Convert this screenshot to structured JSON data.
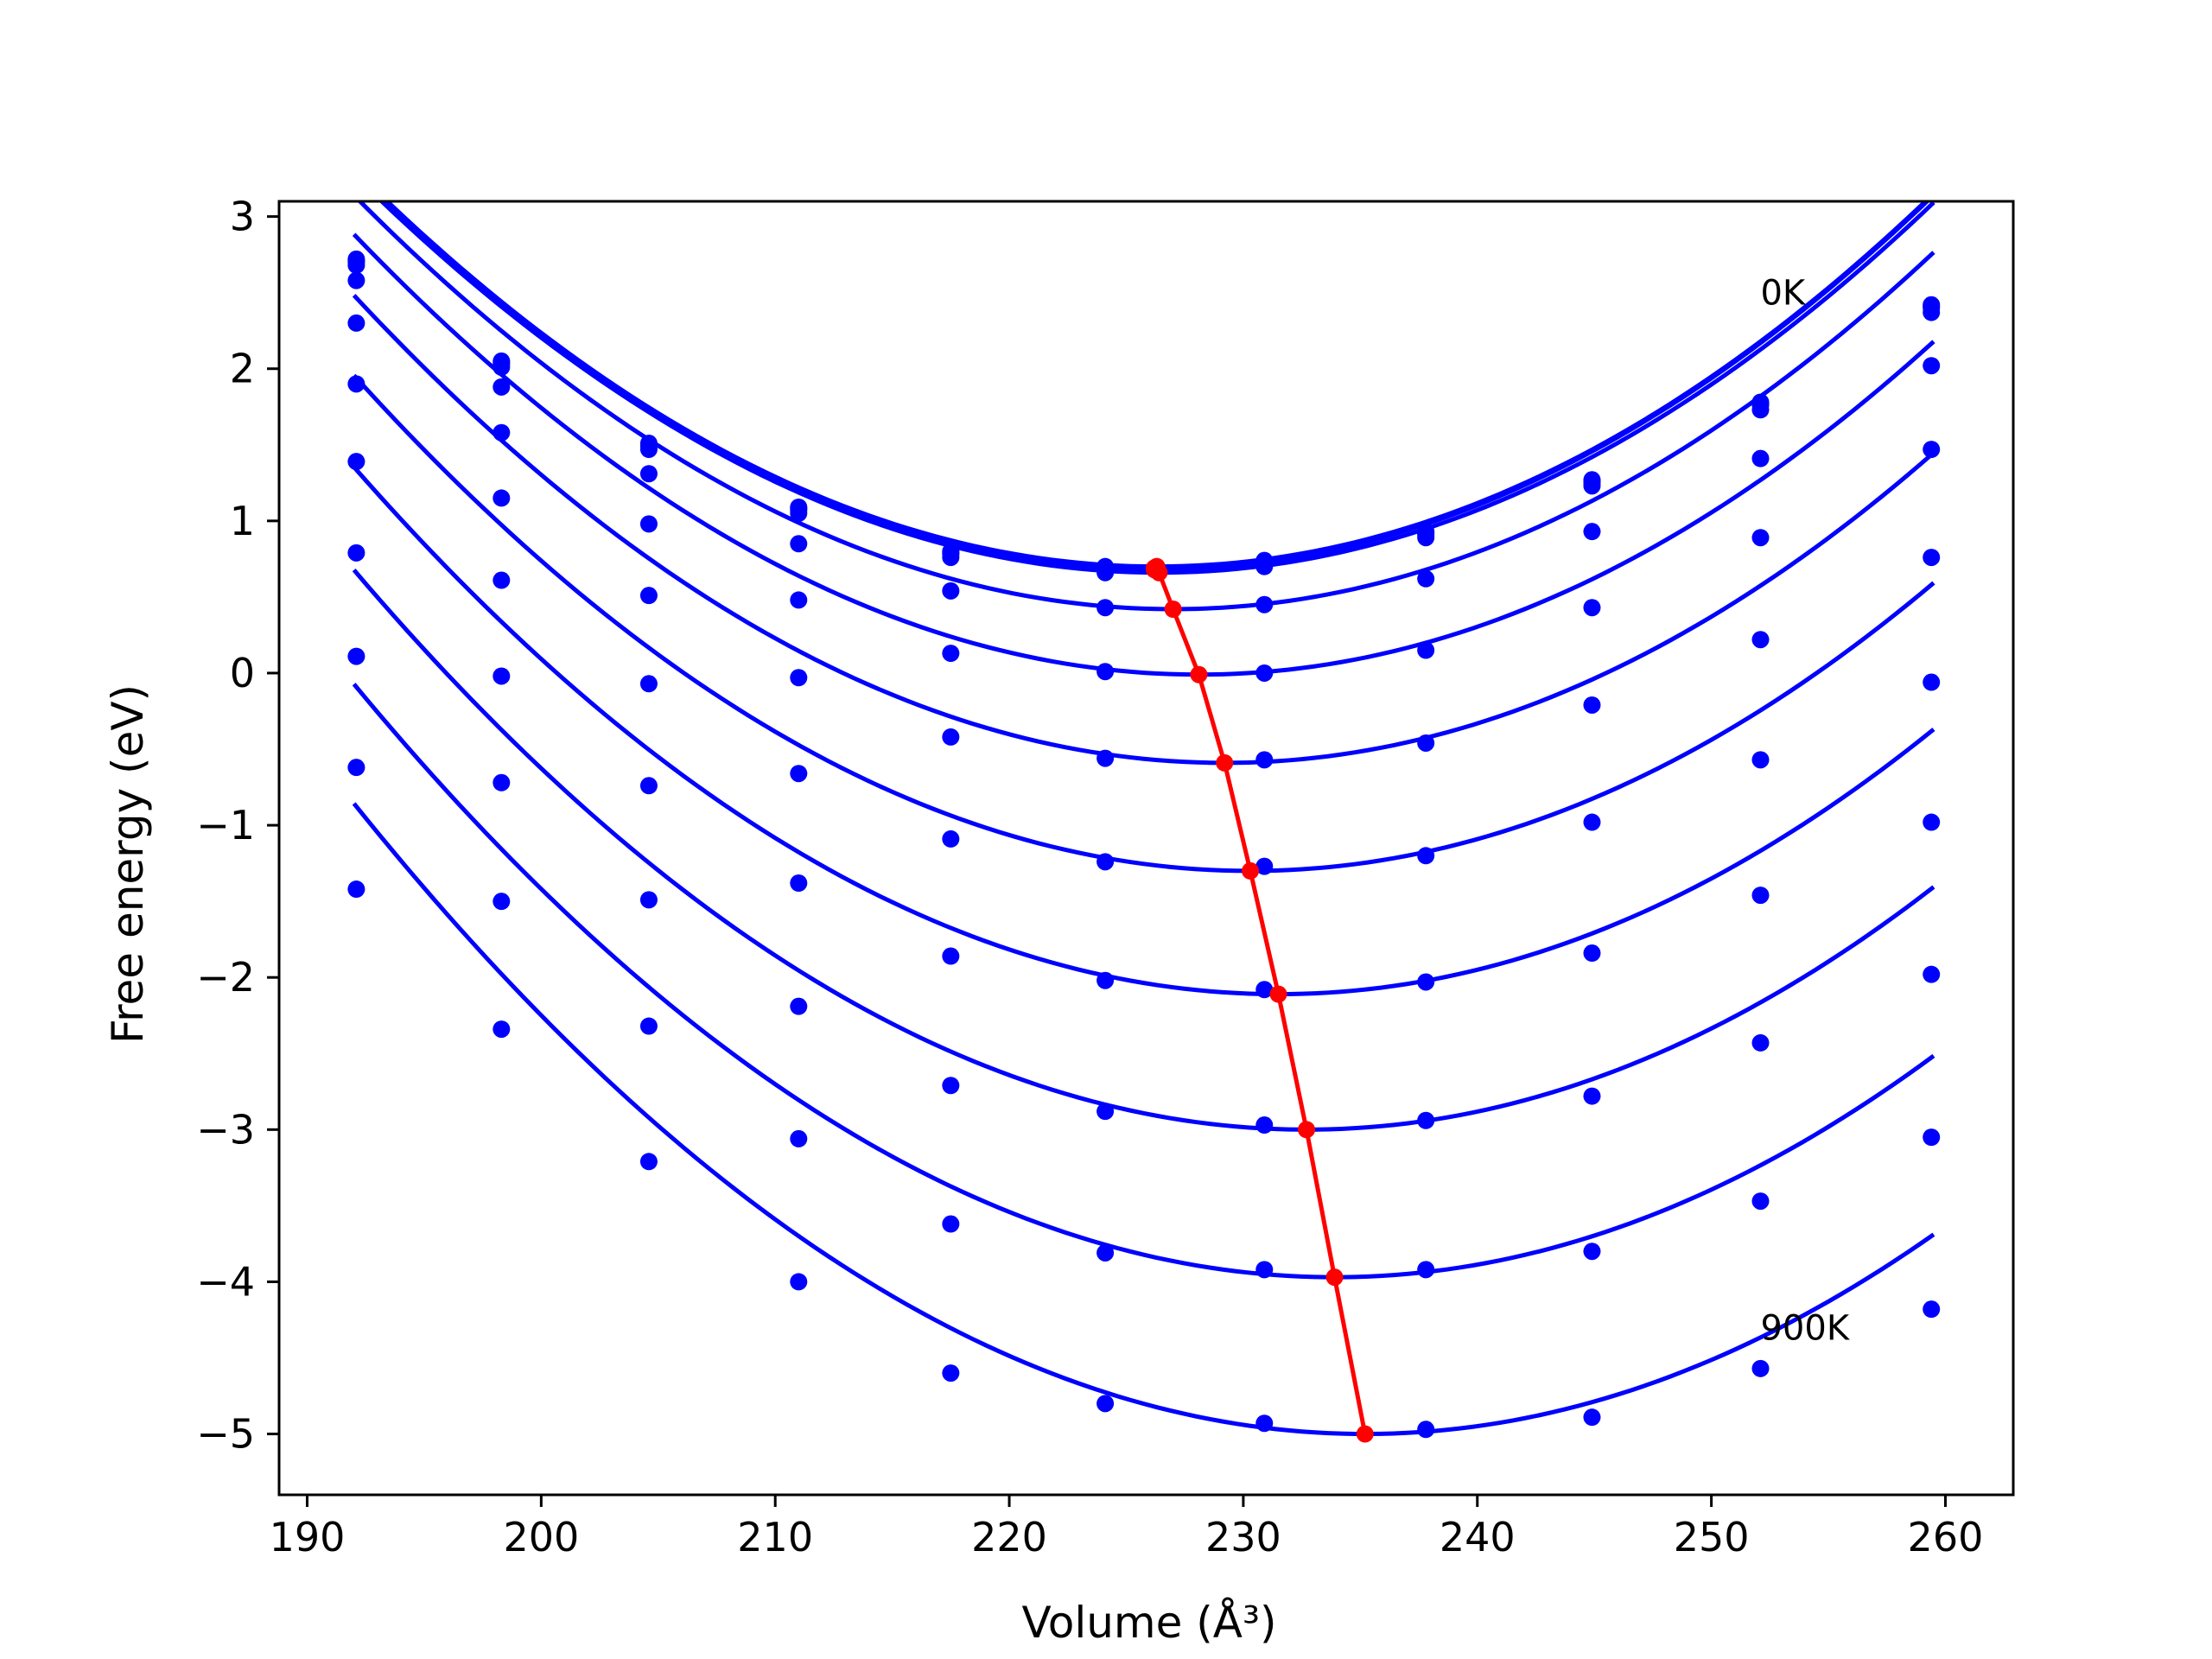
{
  "chart_data": {
    "type": "line",
    "xlabel": "Volume (Å³)",
    "ylabel": "Free energy (eV)",
    "xlim": [
      188.8,
      262.9
    ],
    "ylim": [
      -5.4,
      3.1
    ],
    "xticks": [
      190,
      200,
      210,
      220,
      230,
      240,
      250,
      260
    ],
    "yticks": [
      3,
      2,
      1,
      0,
      -1,
      -2,
      -3,
      -4,
      -5
    ],
    "xtick_labels": [
      "190",
      "200",
      "210",
      "220",
      "230",
      "240",
      "250",
      "260"
    ],
    "ytick_labels": [
      "3",
      "2",
      "1",
      "0",
      "−1",
      "−2",
      "−3",
      "−4",
      "−5"
    ],
    "grid": false,
    "annotations": [
      {
        "text": "0K",
        "x": 252.1,
        "y": 2.5
      },
      {
        "text": "900K",
        "x": 252.1,
        "y": -4.3
      }
    ],
    "fit_range": [
      192.0,
      259.5
    ],
    "volumes": [
      192.1,
      198.3,
      204.6,
      211.0,
      217.5,
      224.1,
      230.9,
      237.8,
      244.9,
      252.1,
      259.4
    ],
    "data_color": "#0000ff",
    "minimum_color": "#ff0000",
    "series": [
      {
        "vmin": 226.3,
        "fmin": 0.7,
        "k": 0.00222,
        "points": [
          2.72,
          2.05,
          1.51,
          1.09,
          0.8,
          0.7,
          0.74,
          0.93,
          1.27,
          1.78,
          2.42
        ]
      },
      {
        "vmin": 226.2,
        "fmin": 0.69,
        "k": 0.00222,
        "points": [
          2.71,
          2.04,
          1.5,
          1.08,
          0.79,
          0.69,
          0.73,
          0.92,
          1.26,
          1.77,
          2.41
        ]
      },
      {
        "vmin": 226.2,
        "fmin": 0.68,
        "k": 0.00222,
        "points": [
          2.7,
          2.03,
          1.49,
          1.07,
          0.78,
          0.68,
          0.72,
          0.91,
          1.25,
          1.76,
          2.4
        ]
      },
      {
        "vmin": 226.4,
        "fmin": 0.66,
        "k": 0.00222,
        "points": [
          2.68,
          2.01,
          1.47,
          1.05,
          0.76,
          0.66,
          0.7,
          0.89,
          1.23,
          1.73,
          2.37
        ]
      },
      {
        "vmin": 227.0,
        "fmin": 0.42,
        "k": 0.00222,
        "points": [
          2.58,
          1.88,
          1.31,
          0.85,
          0.54,
          0.43,
          0.45,
          0.62,
          0.93,
          1.41,
          2.02
        ]
      },
      {
        "vmin": 228.1,
        "fmin": -0.01,
        "k": 0.00222,
        "points": [
          2.3,
          1.58,
          0.98,
          0.48,
          0.13,
          0.01,
          0.0,
          0.15,
          0.43,
          0.89,
          1.47
        ]
      },
      {
        "vmin": 229.2,
        "fmin": -0.59,
        "k": 0.00222,
        "points": [
          1.9,
          1.15,
          0.51,
          -0.03,
          -0.42,
          -0.56,
          -0.57,
          -0.46,
          -0.21,
          0.22,
          0.76
        ]
      },
      {
        "vmin": 230.3,
        "fmin": -1.3,
        "k": 0.00222,
        "points": [
          1.39,
          0.61,
          -0.07,
          -0.66,
          -1.09,
          -1.24,
          -1.27,
          -1.2,
          -0.98,
          -0.57,
          -0.06
        ]
      },
      {
        "vmin": 231.5,
        "fmin": -2.11,
        "k": 0.00222,
        "points": [
          0.79,
          -0.02,
          -0.74,
          -1.38,
          -1.86,
          -2.02,
          -2.08,
          -2.03,
          -1.84,
          -1.46,
          -0.98
        ]
      },
      {
        "vmin": 232.7,
        "fmin": -3.0,
        "k": 0.00222,
        "points": [
          0.11,
          -0.72,
          -1.49,
          -2.19,
          -2.71,
          -2.88,
          -2.97,
          -2.94,
          -2.78,
          -2.43,
          -1.98
        ]
      },
      {
        "vmin": 233.9,
        "fmin": -3.97,
        "k": 0.00222,
        "points": [
          -0.62,
          -1.5,
          -2.32,
          -3.06,
          -3.62,
          -3.81,
          -3.92,
          -3.92,
          -3.8,
          -3.47,
          -3.05
        ]
      },
      {
        "vmin": 235.2,
        "fmin": -5.0,
        "k": 0.00222,
        "points": [
          -1.42,
          -2.34,
          -3.21,
          -4.0,
          -4.6,
          -4.8,
          -4.93,
          -4.97,
          -4.89,
          -4.57,
          -4.18
        ]
      }
    ],
    "minimum_line": {
      "x": [
        226.3,
        226.2,
        226.2,
        226.4,
        227.0,
        228.1,
        229.2,
        230.3,
        231.5,
        232.7,
        233.9,
        235.2
      ],
      "y": [
        0.7,
        0.69,
        0.68,
        0.66,
        0.42,
        -0.01,
        -0.59,
        -1.3,
        -2.11,
        -3.0,
        -3.97,
        -5.0
      ]
    }
  }
}
